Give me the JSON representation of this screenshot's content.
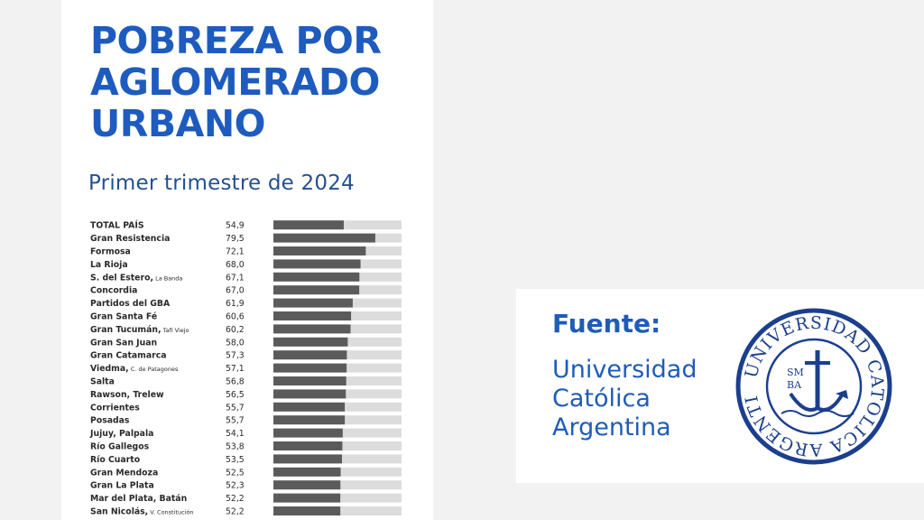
{
  "title_lines": [
    "POBREZA POR",
    "AGLOMERADO",
    "URBANO"
  ],
  "subtitle": "Primer trimestre de 2024",
  "source": {
    "label": "Fuente:",
    "name_lines": [
      "Universidad",
      "Católica",
      "Argentina"
    ]
  },
  "seal": {
    "ring_text": "UNIVERSIDAD CATOLICA ARGENTINA",
    "initials": [
      "SM",
      "BA"
    ]
  },
  "colors": {
    "title": "#1e5bbf",
    "bar": "#5b5b5b",
    "track": "#dcdcdc",
    "seal": "#1b3f8e"
  },
  "chart_data": {
    "type": "bar",
    "orientation": "horizontal",
    "xlim": [
      0,
      100
    ],
    "categories": [
      {
        "name": "TOTAL PAÍS",
        "sub": ""
      },
      {
        "name": "Gran Resistencia",
        "sub": ""
      },
      {
        "name": "Formosa",
        "sub": ""
      },
      {
        "name": "La Rioja",
        "sub": ""
      },
      {
        "name": "S. del Estero,",
        "sub": "La Banda"
      },
      {
        "name": "Concordia",
        "sub": ""
      },
      {
        "name": "Partidos del GBA",
        "sub": ""
      },
      {
        "name": "Gran Santa Fé",
        "sub": ""
      },
      {
        "name": "Gran Tucumán,",
        "sub": "Tafí Viejo"
      },
      {
        "name": "Gran San Juan",
        "sub": ""
      },
      {
        "name": "Gran Catamarca",
        "sub": ""
      },
      {
        "name": "Viedma,",
        "sub": "C. de Patagones"
      },
      {
        "name": "Salta",
        "sub": ""
      },
      {
        "name": "Rawson, Trelew",
        "sub": ""
      },
      {
        "name": "Corrientes",
        "sub": ""
      },
      {
        "name": "Posadas",
        "sub": ""
      },
      {
        "name": "Jujuy, Palpala",
        "sub": ""
      },
      {
        "name": "Río Gallegos",
        "sub": ""
      },
      {
        "name": "Río Cuarto",
        "sub": ""
      },
      {
        "name": "Gran Mendoza",
        "sub": ""
      },
      {
        "name": "Gran La Plata",
        "sub": ""
      },
      {
        "name": "Mar del Plata, Batán",
        "sub": ""
      },
      {
        "name": "San Nicolás,",
        "sub": "V. Constitución"
      }
    ],
    "values": [
      54.9,
      79.5,
      72.1,
      68.0,
      67.1,
      67.0,
      61.9,
      60.6,
      60.2,
      58.0,
      57.3,
      57.1,
      56.8,
      56.5,
      55.7,
      55.7,
      54.1,
      53.8,
      53.5,
      52.5,
      52.3,
      52.2,
      52.2
    ],
    "value_labels": [
      "54,9",
      "79,5",
      "72,1",
      "68,0",
      "67,1",
      "67,0",
      "61,9",
      "60,6",
      "60,2",
      "58,0",
      "57,3",
      "57,1",
      "56,8",
      "56,5",
      "55,7",
      "55,7",
      "54,1",
      "53,8",
      "53,5",
      "52,5",
      "52,3",
      "52,2",
      "52,2"
    ]
  }
}
